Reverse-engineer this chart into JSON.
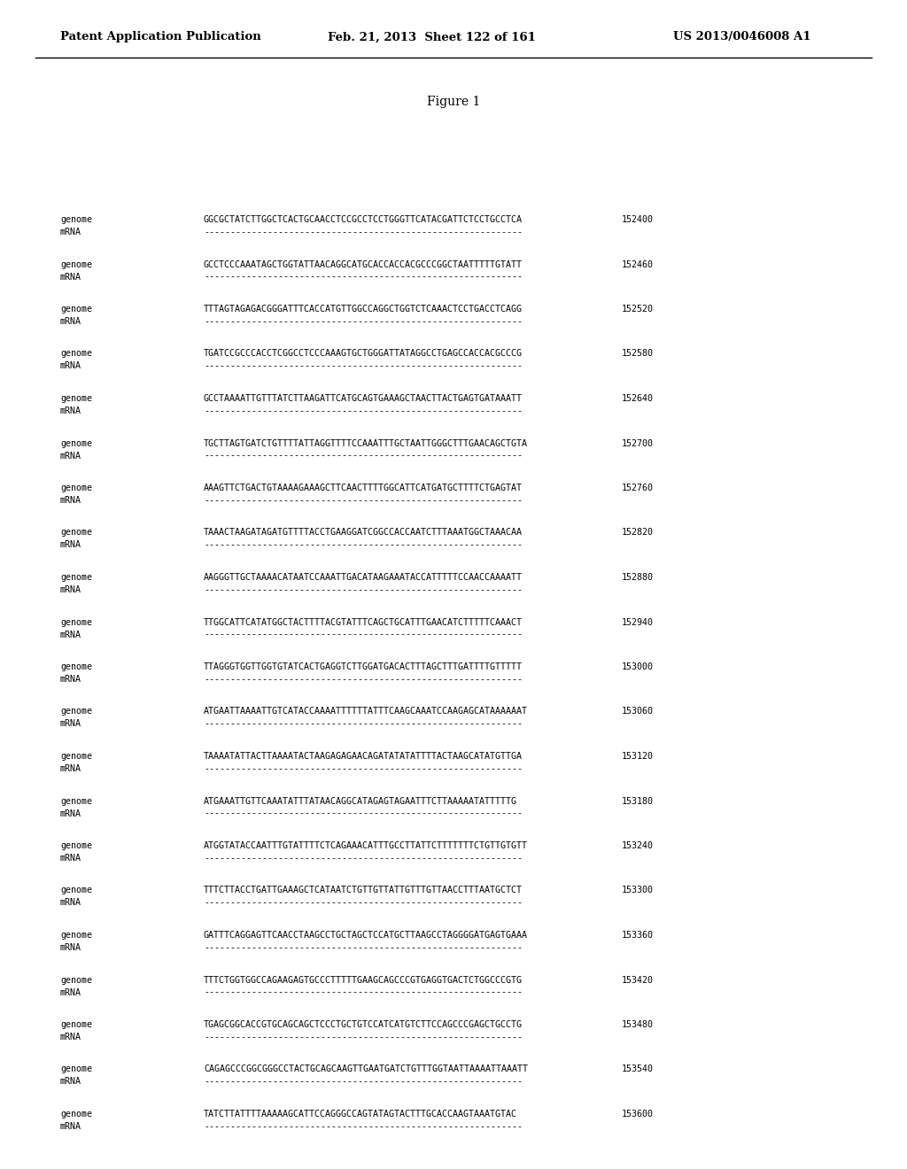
{
  "header_left": "Patent Application Publication",
  "header_middle": "Feb. 21, 2013  Sheet 122 of 161",
  "header_right": "US 2013/0046008 A1",
  "figure_label": "Figure 1",
  "rows": [
    {
      "label1": "genome",
      "label2": "mRNA",
      "seq": "GGCGCTATCTTGGCTCACTGCAACCTCCGCCTCCTGGGTTCATACGATTCTCCTGCCTCA",
      "num": "152400"
    },
    {
      "label1": "genome",
      "label2": "mRNA",
      "seq": "GCCTCCCAAATAGCTGGTATTAACAGGCATGCACCACCACGCCCGGCTAATTTTTGTATT",
      "num": "152460"
    },
    {
      "label1": "genome",
      "label2": "mRNA",
      "seq": "TTTAGTAGAGACGGGATTTCACCATGTTGGCCAGGCTGGTCTCAAACTCCTGACCTCAGG",
      "num": "152520"
    },
    {
      "label1": "genome",
      "label2": "mRNA",
      "seq": "TGATCCGCCCACCTCGGCCTCCCAAAGTGCTGGGATTATAGGCCTGAGCCACCACGCCCG",
      "num": "152580"
    },
    {
      "label1": "genome",
      "label2": "mRNA",
      "seq": "GCCTAAAATTGTTTATCTTAAGATTCATGCAGTGAAAGCTAACTTACTGAGTGATAAATT",
      "num": "152640"
    },
    {
      "label1": "genome",
      "label2": "mRNA",
      "seq": "TGCTTAGTGATCTGTTTTATTAGGTTTTCCAAATTTGCTAATTGGGCTTTGAACAGCTGTA",
      "num": "152700"
    },
    {
      "label1": "genome",
      "label2": "mRNA",
      "seq": "AAAGTTCTGACTGTAAAAGAAAGCTTCAACTTTTGGCATTCATGATGCTTTTCTGAGTAT",
      "num": "152760"
    },
    {
      "label1": "genome",
      "label2": "mRNA",
      "seq": "TAAACTAAGATAGATGTTTTACCTGAAGGATCGGCCACCAATCTTTAAATGGCTAAACAA",
      "num": "152820"
    },
    {
      "label1": "genome",
      "label2": "mRNA",
      "seq": "AAGGGTTGCTAAAACATAATCCAAATTGACATAAGAAATACCATTTTTCCAACCAAAATT",
      "num": "152880"
    },
    {
      "label1": "genome",
      "label2": "mRNA",
      "seq": "TTGGCATTCATATGGCTACTTTTACGTATTTCAGCTGCATTTGAACATCTTTTTCAAACT",
      "num": "152940"
    },
    {
      "label1": "genome",
      "label2": "mRNA",
      "seq": "TTAGGGTGGTTGGTGTATCACTGAGGTCTTGGATGACACTTTAGCTTTGATTTTGTTTTT",
      "num": "153000"
    },
    {
      "label1": "genome",
      "label2": "mRNA",
      "seq": "ATGAATTAAAATTGTCATACCAAAATTTTTTATTTCAAGCAAATCCAAGAGCATAAAAAAT",
      "num": "153060"
    },
    {
      "label1": "genome",
      "label2": "mRNA",
      "seq": "TAAAATATTACTTAAAATACTAAGAGAGAACAGATATATATTTTACTAAGCATATGTTGA",
      "num": "153120"
    },
    {
      "label1": "genome",
      "label2": "mRNA",
      "seq": "ATGAAATTGTTCAAATATTTATAACAGGCATAGAGTAGAATTTCTTAAAAATATTTTTG",
      "num": "153180"
    },
    {
      "label1": "genome",
      "label2": "mRNA",
      "seq": "ATGGTATACCAATTTGTATTTTCTCAGAAACATTTGCCTTATTCTTTTTTTCTGTTGTGTT",
      "num": "153240"
    },
    {
      "label1": "genome",
      "label2": "mRNA",
      "seq": "TTTCTTACCTGATTGAAAGCTCATAATCTGTTGTTATTGTTTGTTAACCTTTAATGCTCT",
      "num": "153300"
    },
    {
      "label1": "genome",
      "label2": "mRNA",
      "seq": "GATTTCAGGAGTTCAACCTAAGCCTGCTAGCTCCATGCTTAAGCCTAGGGGATGAGTGAAA",
      "num": "153360"
    },
    {
      "label1": "genome",
      "label2": "mRNA",
      "seq": "TTTCTGGTGGCCAGAAGAGTGCCCTTTTTGAAGCAGCCCGTGAGGTGACTCTGGCCCGTG",
      "num": "153420"
    },
    {
      "label1": "genome",
      "label2": "mRNA",
      "seq": "TGAGCGGCACCGTGCAGCAGCTCCCTGCTGTCCATCATGTCTTCCAGCCCGAGCTGCCTG",
      "num": "153480"
    },
    {
      "label1": "genome",
      "label2": "mRNA",
      "seq": "CAGAGCCCGGCGGGCCTACTGCAGCAAGTTGAATGATCTGTTTGGTAATTAAAATTAAATT",
      "num": "153540"
    },
    {
      "label1": "genome",
      "label2": "mRNA",
      "seq": "TATCTTATTTTAAAAAGCATTCCAGGGCCAGTATAGTACTTTGCACCAAGTAAATGTAC",
      "num": "153600"
    }
  ],
  "dash_line": "------------------------------------------------------------",
  "bg_color": "#ffffff",
  "text_color": "#000000"
}
